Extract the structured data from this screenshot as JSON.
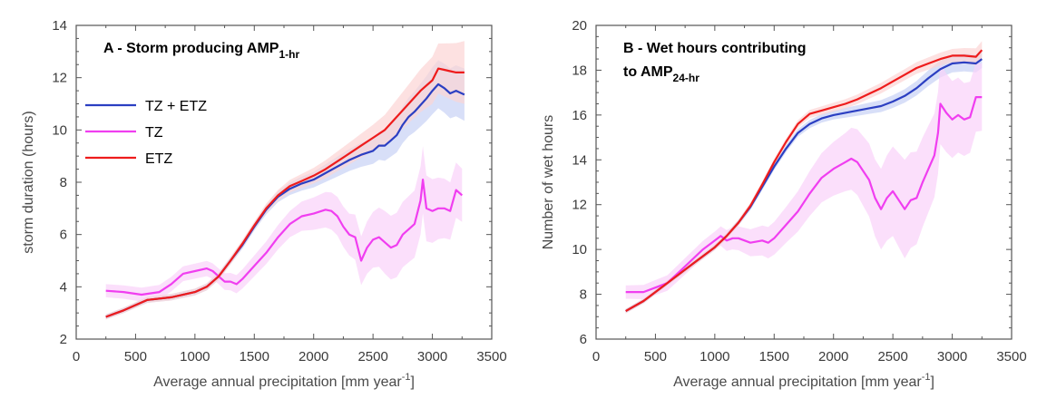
{
  "chart_data": [
    {
      "type": "line",
      "panel": "A",
      "title_main": "A - Storm producing AMP",
      "title_sub": "1-hr",
      "xlabel": "Average annual precipitation [mm year",
      "xlabel_sup": "-1",
      "xlabel_end": "]",
      "ylabel": "storm duration (hours)",
      "xlim": [
        0,
        3500
      ],
      "ylim": [
        2,
        14
      ],
      "xticks": [
        0,
        500,
        1000,
        1500,
        2000,
        2500,
        3000,
        3500
      ],
      "yticks": [
        2,
        4,
        6,
        8,
        10,
        12,
        14
      ],
      "legend": [
        "TZ + ETZ",
        "TZ",
        "ETZ"
      ],
      "series": [
        {
          "name": "TZ + ETZ",
          "color": "#2b3fc2",
          "band_color": "#c8d2f5",
          "band_width": [
            [
              250,
              0.1
            ],
            [
              1500,
              0.15
            ],
            [
              2000,
              0.3
            ],
            [
              2500,
              0.5
            ],
            [
              3000,
              0.9
            ],
            [
              3270,
              1.0
            ]
          ],
          "x": [
            250,
            400,
            600,
            800,
            1000,
            1100,
            1200,
            1300,
            1400,
            1500,
            1600,
            1700,
            1800,
            1900,
            2000,
            2100,
            2200,
            2300,
            2400,
            2500,
            2550,
            2600,
            2650,
            2700,
            2750,
            2800,
            2850,
            2900,
            2950,
            3000,
            3050,
            3100,
            3150,
            3200,
            3270
          ],
          "y": [
            2.85,
            3.1,
            3.5,
            3.6,
            3.8,
            4.0,
            4.4,
            5.0,
            5.6,
            6.3,
            6.95,
            7.45,
            7.75,
            7.95,
            8.1,
            8.35,
            8.6,
            8.85,
            9.05,
            9.2,
            9.4,
            9.4,
            9.6,
            9.8,
            10.2,
            10.5,
            10.7,
            10.95,
            11.2,
            11.5,
            11.75,
            11.6,
            11.4,
            11.5,
            11.35
          ]
        },
        {
          "name": "TZ",
          "color": "#f03ef0",
          "band_color": "#f9d2f9",
          "band_width": [
            [
              250,
              0.25
            ],
            [
              1200,
              0.3
            ],
            [
              1800,
              0.5
            ],
            [
              2300,
              0.8
            ],
            [
              2600,
              1.2
            ],
            [
              2900,
              1.3
            ],
            [
              3270,
              1.0
            ]
          ],
          "x": [
            250,
            400,
            550,
            700,
            800,
            900,
            1000,
            1100,
            1150,
            1200,
            1250,
            1300,
            1350,
            1400,
            1500,
            1600,
            1700,
            1800,
            1900,
            2000,
            2100,
            2150,
            2200,
            2250,
            2300,
            2350,
            2400,
            2450,
            2500,
            2550,
            2600,
            2650,
            2700,
            2750,
            2800,
            2850,
            2900,
            2920,
            2950,
            3000,
            3050,
            3100,
            3150,
            3200,
            3250
          ],
          "y": [
            3.85,
            3.8,
            3.7,
            3.8,
            4.1,
            4.5,
            4.6,
            4.7,
            4.6,
            4.4,
            4.2,
            4.2,
            4.1,
            4.3,
            4.8,
            5.3,
            5.9,
            6.4,
            6.7,
            6.8,
            6.95,
            6.9,
            6.7,
            6.3,
            6.0,
            5.9,
            5.0,
            5.5,
            5.8,
            5.9,
            5.7,
            5.5,
            5.6,
            6.0,
            6.2,
            6.4,
            7.3,
            8.1,
            7.0,
            6.9,
            7.0,
            7.0,
            6.9,
            7.7,
            7.5
          ]
        },
        {
          "name": "ETZ",
          "color": "#ee1c1c",
          "band_color": "#fcd4d4",
          "band_width": [
            [
              250,
              0.1
            ],
            [
              1500,
              0.15
            ],
            [
              2000,
              0.3
            ],
            [
              2500,
              0.5
            ],
            [
              3000,
              0.9
            ],
            [
              3270,
              1.2
            ]
          ],
          "x": [
            250,
            400,
            600,
            800,
            1000,
            1100,
            1200,
            1300,
            1400,
            1500,
            1600,
            1700,
            1800,
            1900,
            2000,
            2100,
            2200,
            2300,
            2400,
            2500,
            2600,
            2700,
            2800,
            2900,
            3000,
            3050,
            3100,
            3150,
            3200,
            3270
          ],
          "y": [
            2.85,
            3.1,
            3.5,
            3.6,
            3.8,
            4.0,
            4.4,
            5.0,
            5.65,
            6.35,
            7.0,
            7.5,
            7.85,
            8.05,
            8.25,
            8.5,
            8.8,
            9.1,
            9.4,
            9.7,
            10.0,
            10.5,
            11.0,
            11.5,
            11.9,
            12.35,
            12.3,
            12.25,
            12.2,
            12.2
          ]
        }
      ]
    },
    {
      "type": "line",
      "panel": "B",
      "title_line1": "B - Wet hours contributing",
      "title_line2_main": "to AMP",
      "title_line2_sub": "24-hr",
      "xlabel": "Average annual precipitation [mm year",
      "xlabel_sup": "-1",
      "xlabel_end": "]",
      "ylabel": "Number of wet hours",
      "xlim": [
        0,
        3500
      ],
      "ylim": [
        6,
        20
      ],
      "xticks": [
        0,
        500,
        1000,
        1500,
        2000,
        2500,
        3000,
        3500
      ],
      "yticks": [
        6,
        8,
        10,
        12,
        14,
        16,
        18,
        20
      ],
      "series": [
        {
          "name": "TZ + ETZ",
          "color": "#2b3fc2",
          "band_color": "#c8d2f5",
          "band_width": [
            [
              250,
              0.1
            ],
            [
              1500,
              0.15
            ],
            [
              2000,
              0.2
            ],
            [
              2600,
              0.3
            ],
            [
              3000,
              0.4
            ],
            [
              3250,
              0.4
            ]
          ],
          "x": [
            250,
            400,
            600,
            800,
            1000,
            1100,
            1200,
            1300,
            1400,
            1500,
            1600,
            1700,
            1800,
            1900,
            2000,
            2100,
            2200,
            2300,
            2400,
            2500,
            2600,
            2700,
            2800,
            2900,
            3000,
            3100,
            3200,
            3250
          ],
          "y": [
            7.25,
            7.7,
            8.5,
            9.3,
            10.1,
            10.6,
            11.2,
            11.9,
            12.8,
            13.7,
            14.5,
            15.2,
            15.6,
            15.85,
            16.0,
            16.1,
            16.2,
            16.3,
            16.4,
            16.6,
            16.85,
            17.2,
            17.65,
            18.05,
            18.3,
            18.35,
            18.3,
            18.5
          ]
        },
        {
          "name": "TZ",
          "color": "#f03ef0",
          "band_color": "#f9d2f9",
          "band_width": [
            [
              250,
              0.3
            ],
            [
              1000,
              0.4
            ],
            [
              1600,
              0.8
            ],
            [
              2100,
              1.3
            ],
            [
              2400,
              1.8
            ],
            [
              2600,
              2.2
            ],
            [
              2900,
              1.8
            ],
            [
              3250,
              1.5
            ]
          ],
          "x": [
            250,
            400,
            500,
            600,
            700,
            800,
            900,
            1000,
            1050,
            1100,
            1150,
            1200,
            1300,
            1400,
            1450,
            1500,
            1600,
            1700,
            1800,
            1900,
            2000,
            2100,
            2150,
            2200,
            2250,
            2300,
            2350,
            2400,
            2450,
            2500,
            2550,
            2600,
            2650,
            2700,
            2750,
            2800,
            2850,
            2880,
            2900,
            2950,
            3000,
            3050,
            3100,
            3150,
            3200,
            3250
          ],
          "y": [
            8.1,
            8.1,
            8.3,
            8.5,
            9.0,
            9.5,
            10.0,
            10.4,
            10.6,
            10.4,
            10.5,
            10.5,
            10.3,
            10.4,
            10.3,
            10.5,
            11.1,
            11.7,
            12.5,
            13.2,
            13.6,
            13.9,
            14.05,
            13.9,
            13.5,
            13.1,
            12.3,
            11.8,
            12.3,
            12.6,
            12.2,
            11.8,
            12.2,
            12.3,
            13.0,
            13.6,
            14.2,
            15.2,
            16.5,
            16.1,
            15.8,
            16.0,
            15.8,
            15.9,
            16.8,
            16.8
          ]
        },
        {
          "name": "ETZ",
          "color": "#ee1c1c",
          "band_color": "#fcd4d4",
          "band_width": [
            [
              250,
              0.1
            ],
            [
              1500,
              0.15
            ],
            [
              2000,
              0.2
            ],
            [
              2600,
              0.25
            ],
            [
              3000,
              0.3
            ],
            [
              3250,
              0.4
            ]
          ],
          "x": [
            250,
            400,
            600,
            800,
            1000,
            1100,
            1200,
            1300,
            1400,
            1500,
            1600,
            1700,
            1800,
            1900,
            2000,
            2100,
            2200,
            2300,
            2400,
            2500,
            2600,
            2700,
            2800,
            2900,
            3000,
            3100,
            3200,
            3250
          ],
          "y": [
            7.25,
            7.7,
            8.5,
            9.3,
            10.1,
            10.6,
            11.2,
            11.95,
            12.9,
            13.9,
            14.8,
            15.6,
            16.05,
            16.2,
            16.35,
            16.5,
            16.7,
            16.95,
            17.2,
            17.5,
            17.8,
            18.1,
            18.3,
            18.5,
            18.65,
            18.65,
            18.6,
            18.9
          ]
        }
      ]
    }
  ]
}
